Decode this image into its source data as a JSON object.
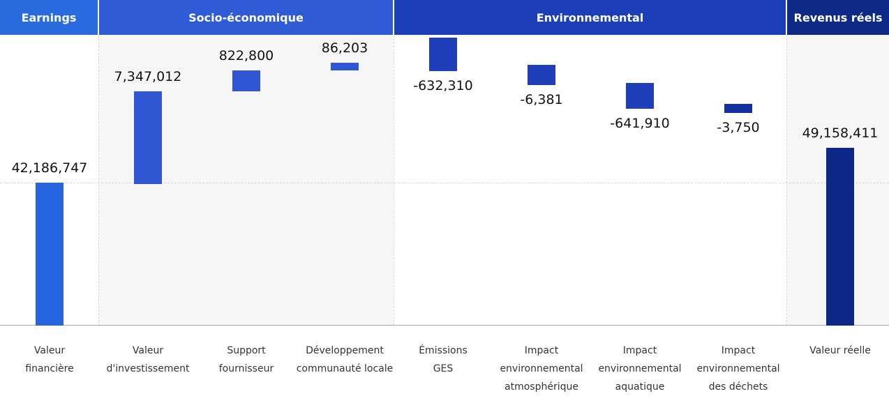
{
  "headers": {
    "earnings": "Earnings",
    "socio": "Socio-économique",
    "environmental": "Environnemental",
    "revenue": "Revenus réels"
  },
  "chart_data": {
    "type": "waterfall",
    "categories": [
      "Valeur financière",
      "Valeur d'investissement",
      "Support fournisseur",
      "Développement communauté locale",
      "Émissions GES",
      "Impact environnemental atmosphérique",
      "Impact environnemental aquatique",
      "Impact environnemental des déchets",
      "Valeur réelle"
    ],
    "category_lines": [
      [
        "Valeur",
        "financière"
      ],
      [
        "Valeur",
        "d'investissement"
      ],
      [
        "Support",
        "fournisseur"
      ],
      [
        "Développement",
        "communauté locale"
      ],
      [
        "Émissions",
        "GES"
      ],
      [
        "Impact environnemental",
        "atmosphérique"
      ],
      [
        "Impact",
        "environnemental",
        "aquatique"
      ],
      [
        "Impact environnemental",
        "des déchets"
      ],
      [
        "Valeur réelle"
      ]
    ],
    "values": [
      42186747,
      7347012,
      822800,
      86203,
      -632310,
      -6381,
      -641910,
      -3750,
      49158411
    ],
    "value_labels": [
      "42,186,747",
      "7,347,012",
      "822,800",
      "86,203",
      "-632,310",
      "-6,381",
      "-641,910",
      "-3,750",
      "49,158,411"
    ],
    "measure": [
      "absolute",
      "relative",
      "relative",
      "relative",
      "relative",
      "relative",
      "relative",
      "relative",
      "total"
    ],
    "groups": [
      "Earnings",
      "Socio-économique",
      "Environnemental",
      "Revenus réels"
    ],
    "colors": [
      "#2566e0",
      "#3056d3",
      "#3056d3",
      "#3056d3",
      "#1f3fb8",
      "#1f3fb8",
      "#1f3fb8",
      "#14309e",
      "#0c2785"
    ]
  }
}
